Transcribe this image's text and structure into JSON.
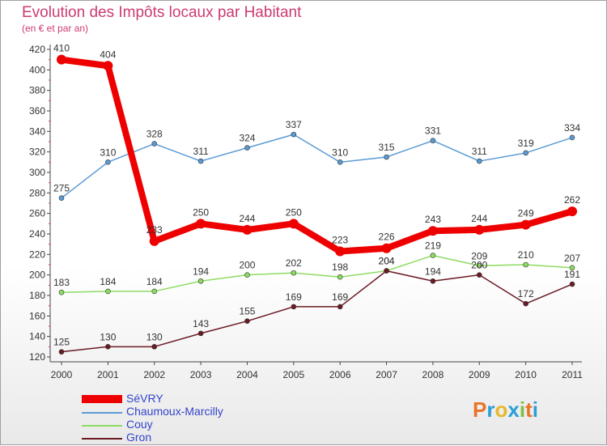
{
  "header": {
    "title": "Evolution des Impôts locaux par Habitant",
    "subtitle": "(en € et par an)"
  },
  "brand": {
    "letters": [
      "P",
      "r",
      "o",
      "x",
      "i",
      "t",
      "i"
    ],
    "colors": [
      "#e8742a",
      "#2a9fd6",
      "#e8b82a",
      "#2a9fd6",
      "#7ac043",
      "#e8742a",
      "#2a9fd6"
    ]
  },
  "chart_data": {
    "type": "line",
    "title": "Evolution des Impôts locaux par Habitant",
    "subtitle": "(en € et par an)",
    "xlabel": "",
    "ylabel": "",
    "x": [
      "2000",
      "2001",
      "2002",
      "2003",
      "2004",
      "2005",
      "2006",
      "2007",
      "2008",
      "2009",
      "2010",
      "2011"
    ],
    "ylim": [
      120,
      420
    ],
    "yticks": [
      120,
      140,
      160,
      180,
      200,
      220,
      240,
      260,
      280,
      300,
      320,
      340,
      360,
      380,
      400,
      420
    ],
    "grid": false,
    "legend_position": "bottom-left",
    "series": [
      {
        "name": "SéVRY",
        "color": "#ee0000",
        "values": [
          410,
          404,
          233,
          250,
          244,
          250,
          223,
          226,
          243,
          244,
          249,
          262
        ]
      },
      {
        "name": "Chaumoux-Marcilly",
        "color": "#5b9bd5",
        "values": [
          275,
          310,
          328,
          311,
          324,
          337,
          310,
          315,
          331,
          311,
          319,
          334
        ]
      },
      {
        "name": "Couy",
        "color": "#8edb62",
        "values": [
          183,
          184,
          184,
          194,
          200,
          202,
          198,
          204,
          219,
          209,
          210,
          207
        ]
      },
      {
        "name": "Gron",
        "color": "#6b1a24",
        "values": [
          125,
          130,
          130,
          143,
          155,
          169,
          169,
          204,
          194,
          200,
          172,
          191
        ]
      }
    ]
  }
}
